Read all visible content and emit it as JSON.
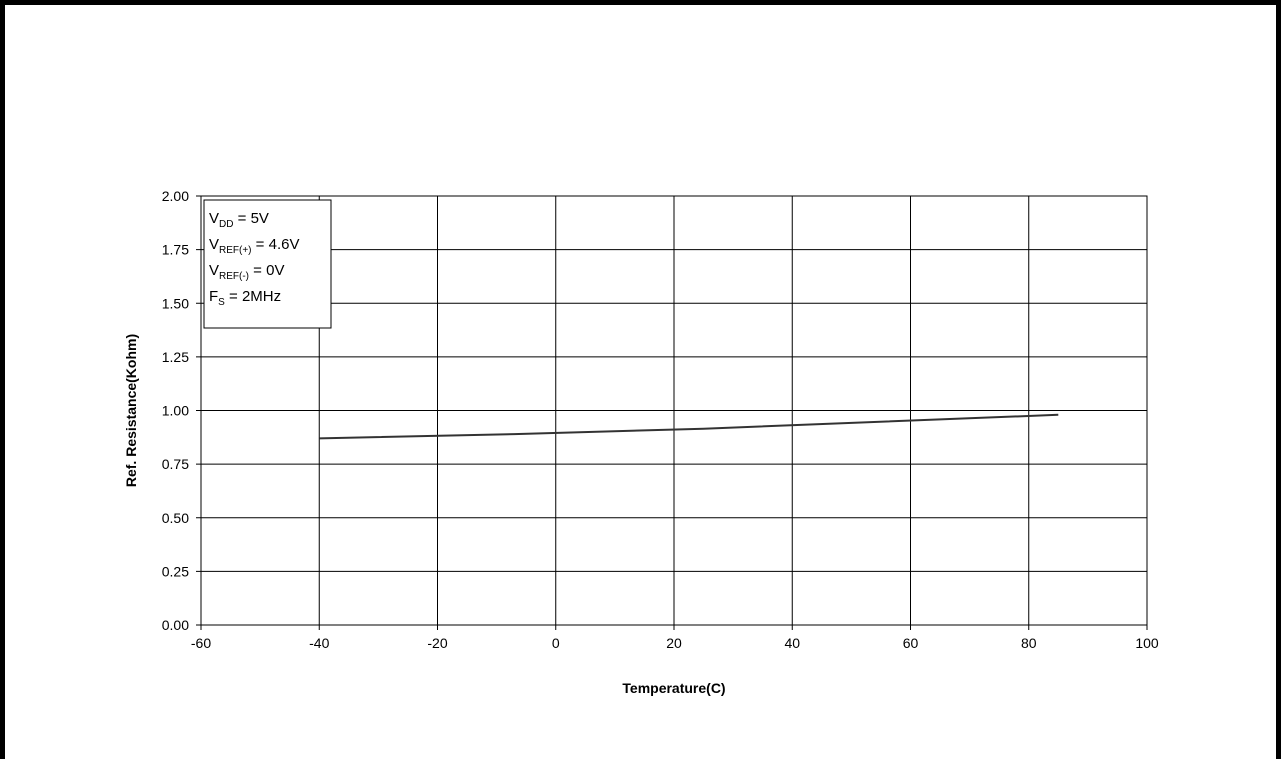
{
  "chart_data": {
    "type": "line",
    "xlabel": "Temperature(C)",
    "ylabel": "Ref. Resistance(Kohm)",
    "xlim": [
      -60,
      100
    ],
    "ylim": [
      0,
      2
    ],
    "x_ticks": [
      "-60",
      "-40",
      "-20",
      "0",
      "20",
      "40",
      "60",
      "80",
      "100"
    ],
    "y_ticks": [
      "0.00",
      "0.25",
      "0.50",
      "0.75",
      "1.00",
      "1.25",
      "1.50",
      "1.75",
      "2.00"
    ],
    "grid": true,
    "series": [
      {
        "x": [
          -40,
          -7,
          25,
          85
        ],
        "y": [
          0.87,
          0.89,
          0.915,
          0.98
        ]
      }
    ],
    "line_color": "#333333",
    "annotation": {
      "lines": [
        {
          "main": "V",
          "sub": "DD",
          "rest": " = 5V"
        },
        {
          "main": "V",
          "sub": "REF(+)",
          "rest": " = 4.6V"
        },
        {
          "main": "V",
          "sub": "REF(-)",
          "rest": " = 0V"
        },
        {
          "main": "F",
          "sub": "S",
          "rest": " = 2MHz"
        }
      ]
    }
  }
}
